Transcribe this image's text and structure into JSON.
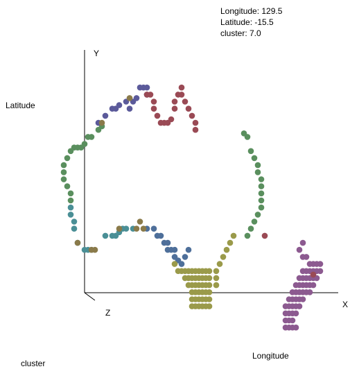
{
  "tooltip": {
    "longitude": "Longitude: 129.5",
    "latitude": "Latitude: -15.5",
    "cluster": "cluster: 7.0"
  },
  "axes": {
    "y_tick": "Y",
    "x_tick": "X",
    "z_tick": "Z"
  },
  "labels": {
    "left": "Latitude",
    "bottom": "Longitude",
    "bottom_left": "cluster"
  },
  "chart_data": {
    "type": "scatter",
    "xlabel": "Longitude",
    "ylabel": "Latitude",
    "zlabel": "cluster",
    "xlim": [
      112,
      154
    ],
    "ylim": [
      -44,
      -10
    ],
    "grid": false,
    "series": [
      {
        "color": "#5a8f5e",
        "points": [
          [
            114,
            -22
          ],
          [
            114,
            -23
          ],
          [
            114,
            -24
          ],
          [
            114.5,
            -21
          ],
          [
            114.5,
            -25
          ],
          [
            115,
            -20
          ],
          [
            115,
            -26
          ],
          [
            115,
            -27
          ],
          [
            115.5,
            -19.5
          ],
          [
            116,
            -19.5
          ],
          [
            116.5,
            -19.5
          ],
          [
            117,
            -19
          ],
          [
            117.5,
            -18
          ],
          [
            118,
            -18
          ],
          [
            119,
            -17
          ],
          [
            119.5,
            -16.5
          ],
          [
            140,
            -17.5
          ],
          [
            140.5,
            -18
          ],
          [
            141,
            -20
          ],
          [
            141.5,
            -21
          ],
          [
            142,
            -22
          ],
          [
            142,
            -23
          ],
          [
            142.5,
            -24
          ],
          [
            142.5,
            -25
          ],
          [
            142.5,
            -26
          ],
          [
            142.5,
            -27
          ],
          [
            142.5,
            -28
          ],
          [
            142,
            -29
          ],
          [
            141.5,
            -30
          ],
          [
            141,
            -31
          ],
          [
            140.5,
            -32
          ]
        ]
      },
      {
        "color": "#4a8f96",
        "points": [
          [
            115,
            -28
          ],
          [
            115,
            -29
          ],
          [
            115.5,
            -30
          ],
          [
            115.5,
            -31
          ],
          [
            116,
            -33
          ],
          [
            117,
            -34
          ],
          [
            117.5,
            -34
          ],
          [
            118,
            -34
          ],
          [
            120,
            -32
          ],
          [
            121,
            -32
          ],
          [
            121.5,
            -32
          ],
          [
            122,
            -31.5
          ],
          [
            122.5,
            -31
          ],
          [
            123,
            -31
          ],
          [
            124,
            -31
          ]
        ]
      },
      {
        "color": "#4e6f9a",
        "points": [
          [
            126,
            -31
          ],
          [
            127,
            -31
          ],
          [
            127.5,
            -32
          ],
          [
            128,
            -32
          ],
          [
            128.5,
            -33
          ],
          [
            129,
            -33
          ],
          [
            129,
            -34
          ],
          [
            129.5,
            -34
          ],
          [
            130,
            -34
          ],
          [
            130,
            -35
          ],
          [
            130.5,
            -35.5
          ],
          [
            131,
            -36
          ],
          [
            131.5,
            -35
          ],
          [
            132,
            -34
          ]
        ]
      },
      {
        "color": "#5b5a9a",
        "points": [
          [
            119,
            -16
          ],
          [
            120,
            -15
          ],
          [
            121,
            -14
          ],
          [
            121.5,
            -14
          ],
          [
            122,
            -13.5
          ],
          [
            123,
            -13
          ],
          [
            123.5,
            -14
          ],
          [
            124,
            -13
          ],
          [
            124.5,
            -12.5
          ],
          [
            125,
            -11
          ],
          [
            125.5,
            -11
          ],
          [
            126,
            -11
          ],
          [
            126,
            -12
          ]
        ]
      },
      {
        "color": "#9a4a55",
        "points": [
          [
            126,
            -12
          ],
          [
            126.5,
            -12
          ],
          [
            127,
            -13
          ],
          [
            127,
            -14
          ],
          [
            127.5,
            -15
          ],
          [
            128,
            -16
          ],
          [
            128.5,
            -16
          ],
          [
            129,
            -16
          ],
          [
            129.5,
            -15.5
          ],
          [
            130,
            -14
          ],
          [
            130,
            -13
          ],
          [
            130.5,
            -12
          ],
          [
            131,
            -11
          ],
          [
            131,
            -12
          ],
          [
            131.5,
            -13
          ],
          [
            132,
            -14
          ],
          [
            132.5,
            -15
          ],
          [
            133,
            -16
          ],
          [
            133,
            -17
          ],
          [
            143,
            -32
          ]
        ]
      },
      {
        "color": "#9a9a4a",
        "points": [
          [
            130,
            -36
          ],
          [
            130.5,
            -37
          ],
          [
            131,
            -37
          ],
          [
            131.5,
            -37
          ],
          [
            132,
            -37
          ],
          [
            132.5,
            -37
          ],
          [
            133,
            -37
          ],
          [
            133.5,
            -37
          ],
          [
            134,
            -37
          ],
          [
            134.5,
            -37
          ],
          [
            135,
            -37
          ],
          [
            136,
            -37
          ],
          [
            136.5,
            -36
          ],
          [
            137,
            -35
          ],
          [
            137.5,
            -34
          ],
          [
            138,
            -33
          ],
          [
            138.5,
            -32
          ],
          [
            131.5,
            -38
          ],
          [
            132,
            -38
          ],
          [
            132.5,
            -38
          ],
          [
            133,
            -38
          ],
          [
            133.5,
            -38
          ],
          [
            134,
            -38
          ],
          [
            134.5,
            -38
          ],
          [
            135,
            -38
          ],
          [
            136,
            -38
          ],
          [
            132,
            -39
          ],
          [
            132.5,
            -39
          ],
          [
            133,
            -39
          ],
          [
            133.5,
            -39
          ],
          [
            134,
            -39
          ],
          [
            134.5,
            -39
          ],
          [
            135,
            -39
          ],
          [
            136,
            -39
          ],
          [
            132.5,
            -40
          ],
          [
            133,
            -40
          ],
          [
            133.5,
            -40
          ],
          [
            134,
            -40
          ],
          [
            134.5,
            -40
          ],
          [
            135,
            -40
          ],
          [
            132.5,
            -41
          ],
          [
            133,
            -41
          ],
          [
            133.5,
            -41
          ],
          [
            134,
            -41
          ],
          [
            134.5,
            -41
          ],
          [
            135,
            -41
          ],
          [
            132.5,
            -42
          ],
          [
            133,
            -42
          ],
          [
            133.5,
            -42
          ],
          [
            134,
            -42
          ],
          [
            134.5,
            -42
          ],
          [
            135,
            -42
          ]
        ]
      },
      {
        "color": "#8a7a4a",
        "points": [
          [
            119.5,
            -16
          ],
          [
            123.5,
            -12.5
          ],
          [
            118,
            -34
          ],
          [
            118.5,
            -34
          ],
          [
            116,
            -33
          ],
          [
            122,
            -31
          ],
          [
            124.5,
            -31
          ],
          [
            125,
            -30
          ],
          [
            125.5,
            -31
          ]
        ]
      },
      {
        "color": "#8c5a90",
        "points": [
          [
            148.5,
            -33
          ],
          [
            148,
            -34
          ],
          [
            148.5,
            -35
          ],
          [
            149,
            -35
          ],
          [
            149.5,
            -36
          ],
          [
            150,
            -36
          ],
          [
            150.5,
            -36
          ],
          [
            151,
            -36
          ],
          [
            148.5,
            -37
          ],
          [
            149,
            -37
          ],
          [
            149.5,
            -37
          ],
          [
            150,
            -37
          ],
          [
            150.5,
            -37
          ],
          [
            151,
            -37
          ],
          [
            148,
            -38
          ],
          [
            148.5,
            -38
          ],
          [
            149,
            -38
          ],
          [
            149.5,
            -38
          ],
          [
            150,
            -38
          ],
          [
            150.5,
            -38
          ],
          [
            147.5,
            -39
          ],
          [
            148,
            -39
          ],
          [
            148.5,
            -39
          ],
          [
            149,
            -39
          ],
          [
            149.5,
            -39
          ],
          [
            150,
            -39
          ],
          [
            147,
            -40
          ],
          [
            147.5,
            -40
          ],
          [
            148,
            -40
          ],
          [
            148.5,
            -40
          ],
          [
            149,
            -40
          ],
          [
            149.5,
            -40
          ],
          [
            146.5,
            -41
          ],
          [
            147,
            -41
          ],
          [
            147.5,
            -41
          ],
          [
            148,
            -41
          ],
          [
            148.5,
            -41
          ],
          [
            146,
            -42
          ],
          [
            146.5,
            -42
          ],
          [
            147,
            -42
          ],
          [
            147.5,
            -42
          ],
          [
            148,
            -42
          ],
          [
            146,
            -43
          ],
          [
            146.5,
            -43
          ],
          [
            147,
            -43
          ],
          [
            147.5,
            -43
          ],
          [
            146,
            -44
          ],
          [
            146.5,
            -44
          ],
          [
            147,
            -44
          ],
          [
            146,
            -45
          ],
          [
            146.5,
            -45
          ],
          [
            147,
            -45
          ],
          [
            147.5,
            -45
          ]
        ]
      },
      {
        "color": "#9a4a55",
        "points": [
          [
            150,
            -37.5
          ]
        ]
      }
    ]
  }
}
